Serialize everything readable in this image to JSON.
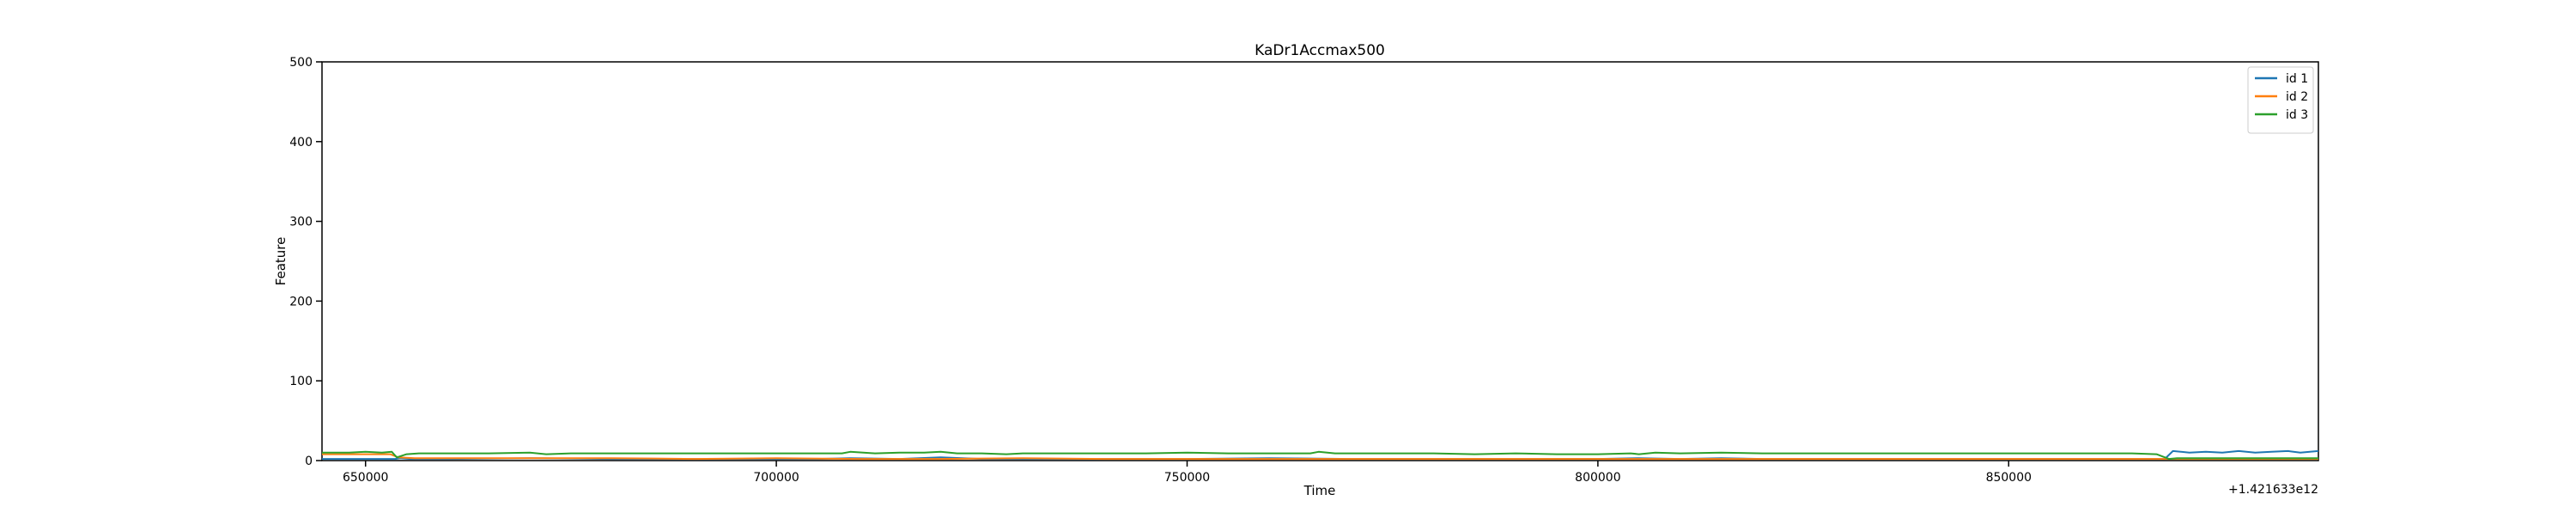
{
  "chart_data": {
    "type": "line",
    "title": "KaDr1Accmax500",
    "xlabel": "Time",
    "ylabel": "Feature",
    "x_offset_label": "+1.421633e12",
    "xlim": [
      644700,
      887700
    ],
    "ylim": [
      0,
      500
    ],
    "xticks": [
      650000,
      700000,
      750000,
      800000,
      850000
    ],
    "xtick_labels": [
      "650000",
      "700000",
      "750000",
      "800000",
      "850000"
    ],
    "yticks": [
      0,
      100,
      200,
      300,
      400,
      500
    ],
    "ytick_labels": [
      "0",
      "100",
      "200",
      "300",
      "400",
      "500"
    ],
    "grid": false,
    "legend_position": "upper right",
    "series": [
      {
        "name": "id 1",
        "color": "#1f77b4",
        "points": [
          [
            644700,
            2
          ],
          [
            653000,
            2
          ],
          [
            653600,
            2
          ],
          [
            654200,
            3
          ],
          [
            655500,
            2
          ],
          [
            656500,
            2
          ],
          [
            660000,
            2
          ],
          [
            670000,
            3
          ],
          [
            680000,
            2
          ],
          [
            690000,
            2
          ],
          [
            700000,
            2
          ],
          [
            705000,
            2
          ],
          [
            709000,
            3
          ],
          [
            715000,
            2
          ],
          [
            720000,
            4
          ],
          [
            725000,
            2
          ],
          [
            730000,
            2
          ],
          [
            740000,
            2
          ],
          [
            750000,
            2
          ],
          [
            760000,
            3
          ],
          [
            770000,
            2
          ],
          [
            780000,
            2
          ],
          [
            790000,
            2
          ],
          [
            800000,
            2
          ],
          [
            805000,
            3
          ],
          [
            810000,
            2
          ],
          [
            815000,
            3
          ],
          [
            820000,
            2
          ],
          [
            830000,
            2
          ],
          [
            840000,
            2
          ],
          [
            850000,
            2
          ],
          [
            860000,
            2
          ],
          [
            864000,
            2
          ],
          [
            867000,
            2
          ],
          [
            869000,
            2
          ],
          [
            870000,
            12
          ],
          [
            872000,
            10
          ],
          [
            874000,
            11
          ],
          [
            876000,
            10
          ],
          [
            878000,
            12
          ],
          [
            880000,
            10
          ],
          [
            882000,
            11
          ],
          [
            884000,
            12
          ],
          [
            885500,
            10
          ],
          [
            887700,
            12
          ]
        ]
      },
      {
        "name": "id 2",
        "color": "#ff7f0e",
        "points": [
          [
            644700,
            8
          ],
          [
            646000,
            8
          ],
          [
            648000,
            8
          ],
          [
            650000,
            8
          ],
          [
            652000,
            8
          ],
          [
            653000,
            8
          ],
          [
            654000,
            4
          ],
          [
            656000,
            3
          ],
          [
            660000,
            3
          ],
          [
            670000,
            3
          ],
          [
            680000,
            3
          ],
          [
            690000,
            2
          ],
          [
            700000,
            3
          ],
          [
            710000,
            2
          ],
          [
            720000,
            2
          ],
          [
            730000,
            3
          ],
          [
            740000,
            2
          ],
          [
            750000,
            2
          ],
          [
            760000,
            2
          ],
          [
            770000,
            2
          ],
          [
            780000,
            2
          ],
          [
            790000,
            2
          ],
          [
            800000,
            2
          ],
          [
            810000,
            2
          ],
          [
            820000,
            2
          ],
          [
            830000,
            2
          ],
          [
            840000,
            2
          ],
          [
            850000,
            2
          ],
          [
            860000,
            2
          ],
          [
            870000,
            2
          ],
          [
            880000,
            2
          ],
          [
            887700,
            2
          ]
        ]
      },
      {
        "name": "id 3",
        "color": "#2ca02c",
        "points": [
          [
            644700,
            10
          ],
          [
            648000,
            10
          ],
          [
            650000,
            11
          ],
          [
            652000,
            10
          ],
          [
            653200,
            11
          ],
          [
            653800,
            4
          ],
          [
            655000,
            8
          ],
          [
            656500,
            9
          ],
          [
            660000,
            9
          ],
          [
            665000,
            9
          ],
          [
            670000,
            10
          ],
          [
            672000,
            8
          ],
          [
            675000,
            9
          ],
          [
            680000,
            9
          ],
          [
            685000,
            9
          ],
          [
            690000,
            9
          ],
          [
            695000,
            9
          ],
          [
            700000,
            9
          ],
          [
            705000,
            9
          ],
          [
            708000,
            9
          ],
          [
            709000,
            11
          ],
          [
            712000,
            9
          ],
          [
            715000,
            10
          ],
          [
            718000,
            10
          ],
          [
            720000,
            11
          ],
          [
            722000,
            9
          ],
          [
            725000,
            9
          ],
          [
            728000,
            8
          ],
          [
            730000,
            9
          ],
          [
            735000,
            9
          ],
          [
            740000,
            9
          ],
          [
            745000,
            9
          ],
          [
            750000,
            10
          ],
          [
            755000,
            9
          ],
          [
            760000,
            9
          ],
          [
            765000,
            9
          ],
          [
            766000,
            11
          ],
          [
            768000,
            9
          ],
          [
            770000,
            9
          ],
          [
            775000,
            9
          ],
          [
            780000,
            9
          ],
          [
            785000,
            8
          ],
          [
            790000,
            9
          ],
          [
            795000,
            8
          ],
          [
            800000,
            8
          ],
          [
            804000,
            9
          ],
          [
            805000,
            8
          ],
          [
            807000,
            10
          ],
          [
            810000,
            9
          ],
          [
            815000,
            10
          ],
          [
            820000,
            9
          ],
          [
            825000,
            9
          ],
          [
            830000,
            9
          ],
          [
            835000,
            9
          ],
          [
            840000,
            9
          ],
          [
            845000,
            9
          ],
          [
            850000,
            9
          ],
          [
            855000,
            9
          ],
          [
            860000,
            9
          ],
          [
            865000,
            9
          ],
          [
            868000,
            8
          ],
          [
            869500,
            2
          ],
          [
            870500,
            3
          ],
          [
            872000,
            3
          ],
          [
            875000,
            3
          ],
          [
            878000,
            3
          ],
          [
            880000,
            3
          ],
          [
            882000,
            3
          ],
          [
            885000,
            3
          ],
          [
            887700,
            3
          ]
        ]
      }
    ]
  }
}
